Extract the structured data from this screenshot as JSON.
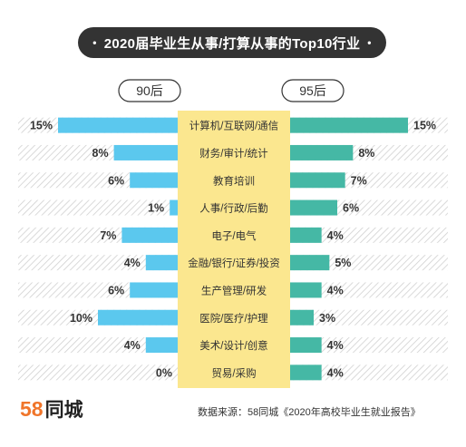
{
  "title": "2020届毕业生从事/打算从事的Top10行业",
  "title_dot": "•",
  "logo": {
    "number": "58",
    "text": "同城"
  },
  "source": "数据来源：58同城《2020年高校毕业生就业报告》",
  "colors": {
    "left_bar": "#5bc8ee",
    "right_bar": "#45b8a5",
    "center_bg": "#fbe78f",
    "hatch": "#dcdcdc",
    "text": "#333333"
  },
  "chart_data": {
    "type": "bar",
    "categories": [
      "计算机/互联网/通信",
      "财务/审计/统计",
      "教育培训",
      "人事/行政/后勤",
      "电子/电气",
      "金融/银行/证券/投资",
      "生产管理/研发",
      "医院/医疗/护理",
      "美术/设计/创意",
      "贸易/采购"
    ],
    "series": [
      {
        "name": "90后",
        "values": [
          15,
          8,
          6,
          1,
          7,
          4,
          6,
          10,
          4,
          0
        ],
        "labels": [
          "15%",
          "8%",
          "6%",
          "1%",
          "7%",
          "4%",
          "6%",
          "10%",
          "4%",
          "0%"
        ]
      },
      {
        "name": "95后",
        "values": [
          15,
          8,
          7,
          6,
          4,
          5,
          4,
          3,
          4,
          4
        ],
        "labels": [
          "15%",
          "8%",
          "7%",
          "6%",
          "4%",
          "5%",
          "4%",
          "3%",
          "4%",
          "4%"
        ]
      }
    ],
    "xlim": [
      0,
      15
    ]
  }
}
